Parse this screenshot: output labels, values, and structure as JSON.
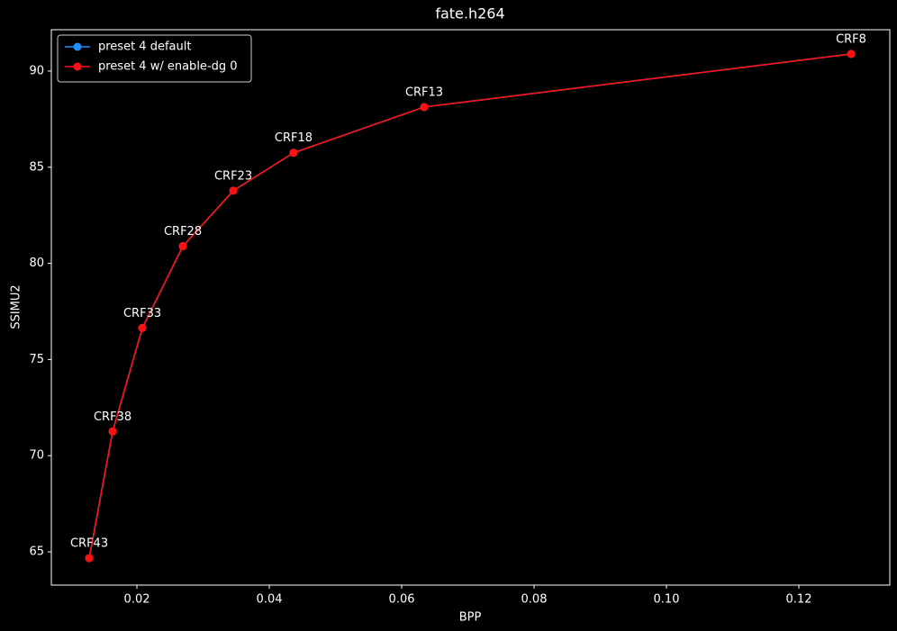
{
  "chart_data": {
    "type": "line",
    "title": "fate.h264",
    "x_label": "BPP",
    "y_label": "SSIMU2",
    "x": [
      0.01279,
      0.01633,
      0.02082,
      0.02694,
      0.03456,
      0.04367,
      0.0634,
      0.12789
    ],
    "series": [
      {
        "name": "preset 4 default",
        "color": "#1f8fff",
        "values": [
          64.67,
          71.26,
          76.64,
          80.89,
          83.78,
          85.75,
          88.13,
          90.89
        ]
      },
      {
        "name": "preset 4 w/ enable-dg 0",
        "color": "#ff1010",
        "values": [
          64.67,
          71.26,
          76.64,
          80.89,
          83.78,
          85.75,
          88.13,
          90.89
        ]
      }
    ],
    "point_labels": [
      "CRF43",
      "CRF38",
      "CRF33",
      "CRF28",
      "CRF23",
      "CRF18",
      "CRF13",
      "CRF8"
    ],
    "xlim": [
      0.00707,
      0.13374
    ],
    "ylim": [
      63.27,
      92.15
    ],
    "xticks": [
      0.02,
      0.04,
      0.06,
      0.08,
      {
        "value": 0.1,
        "label": "0.10"
      },
      0.12
    ],
    "yticks": [
      65,
      70,
      75,
      80,
      85,
      90
    ],
    "grid": false,
    "legend": "upper-left"
  }
}
